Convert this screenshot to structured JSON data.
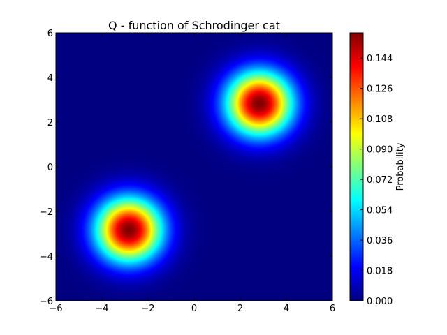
{
  "chart_data": {
    "type": "heatmap",
    "title": "Q - function of Schrodinger cat",
    "xlabel": "",
    "ylabel": "",
    "xlim": [
      -6,
      6
    ],
    "ylim": [
      -6,
      6
    ],
    "x_ticks": [
      "−6",
      "−4",
      "−2",
      "0",
      "2",
      "4",
      "6"
    ],
    "y_ticks": [
      "−6",
      "−4",
      "−2",
      "0",
      "2",
      "4",
      "6"
    ],
    "x_tick_values": [
      -6,
      -4,
      -2,
      0,
      2,
      4,
      6
    ],
    "y_tick_values": [
      -6,
      -4,
      -2,
      0,
      2,
      4,
      6
    ],
    "colormap": "jet",
    "grid": false,
    "peaks": [
      {
        "x": 2.83,
        "y": 2.83,
        "amplitude": 0.159,
        "sigma": 1.0
      },
      {
        "x": -2.83,
        "y": -2.83,
        "amplitude": 0.159,
        "sigma": 1.0
      }
    ],
    "colorbar": {
      "label": "Probability",
      "range": [
        0.0,
        0.159
      ],
      "ticks": [
        "0.000",
        "0.018",
        "0.036",
        "0.054",
        "0.072",
        "0.090",
        "0.108",
        "0.126",
        "0.144"
      ],
      "tick_values": [
        0.0,
        0.018,
        0.036,
        0.054,
        0.072,
        0.09,
        0.108,
        0.126,
        0.144
      ]
    }
  }
}
